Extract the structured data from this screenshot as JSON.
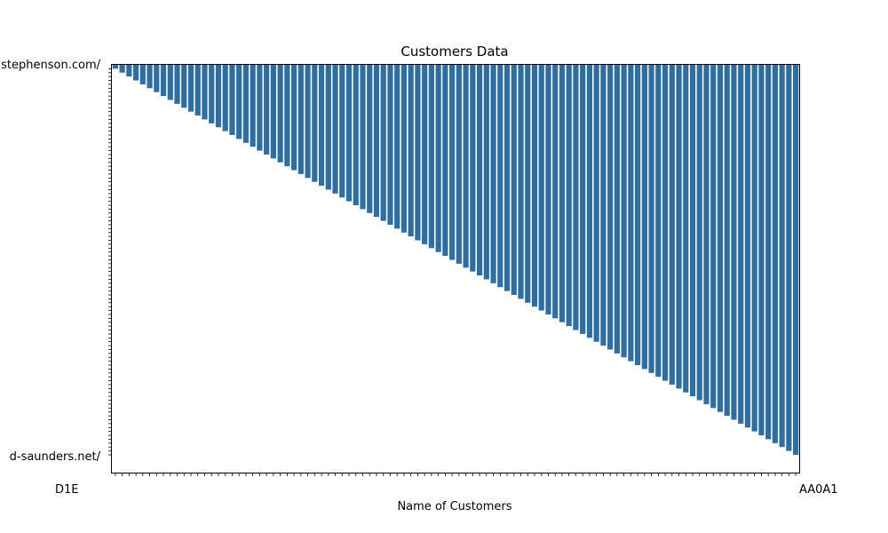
{
  "chart_data": {
    "type": "bar",
    "title": "Customers Data",
    "xlabel": "Name of Customers",
    "ylabel": "",
    "bar_color": "#2f6e9f",
    "grid": false,
    "first_x_tick": "D1E",
    "last_x_tick": "AA0A1",
    "first_y_tick": "stephenson.com/",
    "last_y_tick": "d-saunders.net/",
    "num_bars": 100,
    "ylim": [
      0,
      100
    ],
    "values": [
      1,
      2,
      3,
      4,
      5,
      6,
      7,
      8,
      9,
      10,
      11,
      12,
      13,
      14,
      15,
      16,
      17,
      18,
      19,
      20,
      21,
      22,
      23,
      24,
      25,
      26,
      27,
      28,
      29,
      30,
      31,
      32,
      33,
      34,
      35,
      36,
      37,
      38,
      39,
      40,
      41,
      42,
      43,
      44,
      45,
      46,
      47,
      48,
      49,
      50,
      51,
      52,
      53,
      54,
      55,
      56,
      57,
      58,
      59,
      60,
      61,
      62,
      63,
      64,
      65,
      66,
      67,
      68,
      69,
      70,
      71,
      72,
      73,
      74,
      75,
      76,
      77,
      78,
      79,
      80,
      81,
      82,
      83,
      84,
      85,
      86,
      87,
      88,
      89,
      90,
      91,
      92,
      93,
      94,
      95,
      96,
      97,
      98,
      99,
      100
    ]
  }
}
